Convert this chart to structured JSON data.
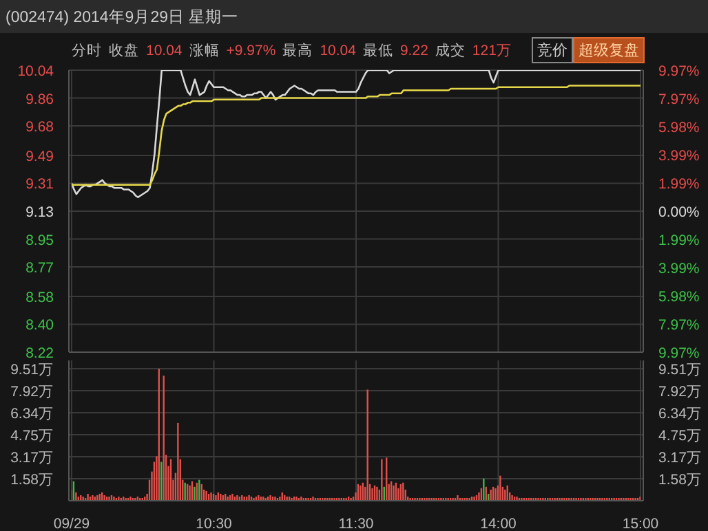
{
  "chart_data": [
    {
      "type": "line",
      "title": "(002474) 2014年9月29日 星期一",
      "subtitle": "分时 收盘 10.04 涨幅 +9.97% 最高 10.04 最低 9.22 成交 121万",
      "annotations": [
        "竞价",
        "超级复盘"
      ],
      "categories": [
        null,
        null,
        null,
        null,
        null,
        null,
        null,
        null,
        null,
        null,
        null,
        null,
        null,
        null,
        null,
        null,
        null,
        null,
        null,
        null,
        null,
        null,
        null,
        null,
        null,
        null,
        null,
        null,
        null,
        null,
        null,
        null,
        null,
        null,
        null,
        null,
        null,
        null,
        null,
        null,
        null,
        null,
        null,
        null,
        null,
        null,
        null,
        null,
        null,
        null,
        null,
        null,
        null,
        null,
        null,
        null,
        null,
        null,
        null,
        null,
        null,
        null,
        null,
        null,
        null,
        null,
        null,
        null,
        null,
        null,
        null,
        null,
        null,
        null,
        null,
        null,
        null,
        null,
        null,
        null,
        null,
        null,
        null,
        null,
        null,
        null,
        null,
        null,
        null,
        null,
        null,
        null,
        null,
        null,
        null,
        null,
        null,
        null,
        null,
        null,
        null,
        null,
        null,
        null,
        null,
        null,
        null,
        null,
        null,
        null,
        null,
        null,
        null,
        null,
        null,
        null,
        null,
        null,
        null,
        null,
        null,
        null,
        null,
        null,
        null,
        null,
        null,
        null,
        null,
        null,
        null,
        null,
        null,
        null,
        null,
        null,
        null,
        null,
        null,
        null,
        null,
        null,
        null,
        null,
        null,
        null,
        null,
        null,
        null,
        null,
        null,
        null,
        null,
        null,
        null,
        null,
        null,
        null,
        null,
        null,
        null,
        null,
        null,
        null,
        null,
        null,
        null,
        null,
        null,
        null,
        null,
        null,
        null,
        null,
        null,
        null,
        null,
        null,
        null,
        null,
        null,
        null,
        null,
        null,
        null,
        null,
        null,
        null,
        null,
        null,
        null,
        null,
        null,
        null,
        null,
        null,
        null,
        null,
        null,
        null,
        null,
        null,
        null,
        null,
        null,
        null,
        null,
        null,
        null,
        null,
        null,
        null,
        null,
        null,
        null,
        null,
        null,
        null,
        null,
        null,
        null,
        null,
        null,
        null,
        null,
        null,
        null,
        null,
        null,
        null,
        null,
        null,
        null,
        null,
        null,
        null,
        null,
        null,
        null,
        null,
        null
      ],
      "ylim": [
        8.22,
        10.04
      ],
      "yticks": [
        10.04,
        9.86,
        9.68,
        9.49,
        9.31,
        9.13,
        8.95,
        8.77,
        8.58,
        {
          "value": 8.4,
          "label": "8.40"
        },
        8.22
      ],
      "y2lim": [
        -9.97,
        9.97
      ],
      "y2ticks": [
        {
          "value": 9.97,
          "label": "9.97%"
        },
        {
          "value": 7.97,
          "label": "7.97%"
        },
        {
          "value": 5.98,
          "label": "5.98%"
        },
        {
          "value": 3.99,
          "label": "3.99%"
        },
        {
          "value": 1.99,
          "label": "1.99%"
        },
        {
          "value": 0,
          "label": "0.00%"
        },
        {
          "value": -1.99,
          "label": "1.99%"
        },
        {
          "value": -3.99,
          "label": "3.99%"
        },
        {
          "value": -5.98,
          "label": "5.98%"
        },
        {
          "value": -7.97,
          "label": "7.97%"
        },
        {
          "value": -9.97,
          "label": "9.97%"
        }
      ],
      "grid": true,
      "tick_labels": "y",
      "marker": "none",
      "line_style": "solid",
      "series": [
        {
          "color": "#d8d8d8",
          "values": [
            9.31,
            9.27,
            9.24,
            9.26,
            9.28,
            9.29,
            9.3,
            9.29,
            9.29,
            9.3,
            9.3,
            9.31,
            9.32,
            9.33,
            9.31,
            9.3,
            9.29,
            9.29,
            9.28,
            9.28,
            9.28,
            9.28,
            9.27,
            9.27,
            9.27,
            9.26,
            9.25,
            9.23,
            9.22,
            9.23,
            9.24,
            9.25,
            9.26,
            9.28,
            9.38,
            9.5,
            9.68,
            9.85,
            10.04,
            10.04,
            10.04,
            10.04,
            10.04,
            10.04,
            10.04,
            10.04,
            10.04,
            9.99,
            9.94,
            9.9,
            9.88,
            9.93,
            9.98,
            9.93,
            9.88,
            9.89,
            9.9,
            9.94,
            9.97,
            9.95,
            9.93,
            9.93,
            9.93,
            9.93,
            9.93,
            9.92,
            9.91,
            9.91,
            9.9,
            9.89,
            9.88,
            9.88,
            9.87,
            9.87,
            9.88,
            9.88,
            9.88,
            9.89,
            9.89,
            9.9,
            9.9,
            9.88,
            9.86,
            9.88,
            9.9,
            9.88,
            9.85,
            9.86,
            9.87,
            9.88,
            9.88,
            9.9,
            9.92,
            9.93,
            9.94,
            9.93,
            9.92,
            9.92,
            9.91,
            9.9,
            9.89,
            9.89,
            9.88,
            9.9,
            9.91,
            9.91,
            9.91,
            9.91,
            9.91,
            9.91,
            9.91,
            9.91,
            9.9,
            9.9,
            9.9,
            9.9,
            9.9,
            9.9,
            9.9,
            9.9,
            9.9,
            9.92,
            9.96,
            9.99,
            10.02,
            10.04,
            10.04,
            10.04,
            10.04,
            10.04,
            10.04,
            10.04,
            10.04,
            10.04,
            10.02,
            10.03,
            10.04,
            10.04,
            10.04,
            10.04,
            10.04,
            10.04,
            10.04,
            10.04,
            10.04,
            10.04,
            10.04,
            10.04,
            10.04,
            10.04,
            10.04,
            10.04,
            10.04,
            10.04,
            10.04,
            10.04,
            10.04,
            10.04,
            10.04,
            10.04,
            10.04,
            10.04,
            10.04,
            10.04,
            10.04,
            10.04,
            10.04,
            10.04,
            10.04,
            10.04,
            10.04,
            10.04,
            10.04,
            10.04,
            10.04,
            10.04,
            10.04,
            9.99,
            9.96,
            10.0,
            10.04,
            10.04,
            10.04,
            10.04,
            10.04,
            10.04,
            10.04,
            10.04,
            10.04,
            10.04,
            10.04,
            10.04,
            10.04,
            10.04,
            10.04,
            10.04,
            10.04,
            10.04,
            10.04,
            10.04,
            10.04,
            10.04,
            10.04,
            10.04,
            10.04,
            10.04,
            10.04,
            10.04,
            10.04,
            10.04,
            10.04,
            10.04,
            10.04,
            10.04,
            10.04,
            10.04,
            10.04,
            10.04,
            10.04,
            10.04,
            10.04,
            10.04,
            10.04,
            10.04,
            10.04,
            10.04,
            10.04,
            10.04,
            10.04,
            10.04,
            10.04,
            10.04,
            10.04,
            10.04,
            10.04,
            10.04,
            10.04,
            10.04,
            10.04,
            10.04,
            10.04
          ]
        },
        {
          "color": "#e6d84a",
          "values": [
            9.3,
            9.3,
            9.3,
            9.3,
            9.3,
            9.3,
            9.3,
            9.3,
            9.3,
            9.3,
            9.3,
            9.3,
            9.3,
            9.3,
            9.3,
            9.3,
            9.3,
            9.3,
            9.3,
            9.3,
            9.3,
            9.3,
            9.3,
            9.3,
            9.3,
            9.3,
            9.3,
            9.3,
            9.3,
            9.3,
            9.3,
            9.3,
            9.3,
            9.3,
            9.33,
            9.37,
            9.4,
            9.52,
            9.65,
            9.72,
            9.76,
            9.77,
            9.78,
            9.79,
            9.8,
            9.81,
            9.81,
            9.82,
            9.82,
            9.83,
            9.83,
            9.84,
            9.84,
            9.84,
            9.84,
            9.84,
            9.84,
            9.84,
            9.84,
            9.84,
            9.85,
            9.85,
            9.85,
            9.85,
            9.85,
            9.85,
            9.85,
            9.85,
            9.85,
            9.85,
            9.85,
            9.85,
            9.85,
            9.85,
            9.85,
            9.85,
            9.85,
            9.85,
            9.85,
            9.85,
            9.86,
            9.86,
            9.86,
            9.86,
            9.86,
            9.86,
            9.86,
            9.86,
            9.86,
            9.86,
            9.86,
            9.86,
            9.86,
            9.86,
            9.86,
            9.86,
            9.86,
            9.86,
            9.86,
            9.86,
            9.86,
            9.86,
            9.86,
            9.86,
            9.86,
            9.86,
            9.86,
            9.86,
            9.86,
            9.86,
            9.86,
            9.86,
            9.86,
            9.86,
            9.86,
            9.86,
            9.86,
            9.86,
            9.86,
            9.86,
            9.86,
            9.86,
            9.86,
            9.86,
            9.86,
            9.87,
            9.87,
            9.87,
            9.87,
            9.87,
            9.88,
            9.88,
            9.88,
            9.88,
            9.88,
            9.89,
            9.89,
            9.89,
            9.89,
            9.89,
            9.91,
            9.91,
            9.91,
            9.91,
            9.91,
            9.91,
            9.91,
            9.91,
            9.91,
            9.91,
            9.91,
            9.91,
            9.91,
            9.91,
            9.91,
            9.91,
            9.91,
            9.91,
            9.91,
            9.91,
            9.92,
            9.92,
            9.92,
            9.92,
            9.92,
            9.92,
            9.92,
            9.92,
            9.92,
            9.92,
            9.92,
            9.92,
            9.92,
            9.92,
            9.92,
            9.92,
            9.92,
            9.92,
            9.92,
            9.92,
            9.93,
            9.93,
            9.93,
            9.93,
            9.93,
            9.93,
            9.93,
            9.93,
            9.93,
            9.93,
            9.93,
            9.93,
            9.93,
            9.93,
            9.93,
            9.93,
            9.93,
            9.93,
            9.93,
            9.93,
            9.93,
            9.93,
            9.93,
            9.93,
            9.93,
            9.93,
            9.93,
            9.93,
            9.93,
            9.93,
            9.94,
            9.94,
            9.94,
            9.94,
            9.94,
            9.94,
            9.94,
            9.94,
            9.94,
            9.94,
            9.94,
            9.94,
            9.94,
            9.94,
            9.94,
            9.94,
            9.94,
            9.94,
            9.94,
            9.94,
            9.94,
            9.94,
            9.94,
            9.94,
            9.94,
            9.94,
            9.94,
            9.94,
            9.94,
            9.94,
            9.94
          ]
        }
      ]
    },
    {
      "type": "bar",
      "categories": [
        "09/29",
        null,
        null,
        null,
        null,
        null,
        null,
        null,
        null,
        null,
        null,
        null,
        null,
        null,
        null,
        null,
        null,
        null,
        null,
        null,
        null,
        null,
        null,
        null,
        null,
        null,
        null,
        null,
        null,
        null,
        null,
        null,
        null,
        null,
        null,
        null,
        null,
        null,
        null,
        null,
        null,
        null,
        null,
        null,
        null,
        null,
        null,
        null,
        null,
        null,
        null,
        null,
        null,
        null,
        null,
        null,
        null,
        null,
        null,
        null,
        "10:30",
        null,
        null,
        null,
        null,
        null,
        null,
        null,
        null,
        null,
        null,
        null,
        null,
        null,
        null,
        null,
        null,
        null,
        null,
        null,
        null,
        null,
        null,
        null,
        null,
        null,
        null,
        null,
        null,
        null,
        null,
        null,
        null,
        null,
        null,
        null,
        null,
        null,
        null,
        null,
        null,
        null,
        null,
        null,
        null,
        null,
        null,
        null,
        null,
        null,
        null,
        null,
        null,
        null,
        null,
        null,
        null,
        null,
        null,
        null,
        "11:30",
        null,
        null,
        null,
        null,
        null,
        null,
        null,
        null,
        null,
        null,
        null,
        null,
        null,
        null,
        null,
        null,
        null,
        null,
        null,
        null,
        null,
        null,
        null,
        null,
        null,
        null,
        null,
        null,
        null,
        null,
        null,
        null,
        null,
        null,
        null,
        null,
        null,
        null,
        null,
        null,
        null,
        null,
        null,
        null,
        null,
        null,
        null,
        null,
        null,
        null,
        null,
        null,
        null,
        null,
        null,
        null,
        null,
        null,
        null,
        "14:00",
        null,
        null,
        null,
        null,
        null,
        null,
        null,
        null,
        null,
        null,
        null,
        null,
        null,
        null,
        null,
        null,
        null,
        null,
        null,
        null,
        null,
        null,
        null,
        null,
        null,
        null,
        null,
        null,
        null,
        null,
        null,
        null,
        null,
        null,
        null,
        null,
        null,
        null,
        null,
        null,
        null,
        null,
        null,
        null,
        null,
        null,
        null,
        null,
        null,
        null,
        null,
        null,
        null,
        null,
        null,
        null,
        null,
        null,
        null,
        "15:00"
      ],
      "ylim": [
        0,
        10.1
      ],
      "yticks": [
        {
          "value": 1.58,
          "label": "1.58万"
        },
        {
          "value": 3.17,
          "label": "3.17万"
        },
        {
          "value": 4.75,
          "label": "4.75万"
        },
        {
          "value": 6.34,
          "label": "6.34万"
        },
        {
          "value": 7.92,
          "label": "7.92万"
        },
        {
          "value": 9.51,
          "label": "9.51万"
        }
      ],
      "y2lim": [
        0,
        10.1
      ],
      "y2ticks": [
        {
          "value": 1.58,
          "label": "1.58万"
        },
        {
          "value": 3.17,
          "label": "3.17万"
        },
        {
          "value": 4.75,
          "label": "4.75万"
        },
        {
          "value": 6.34,
          "label": "6.34万"
        },
        {
          "value": 7.92,
          "label": "7.92万"
        },
        {
          "value": 9.51,
          "label": "9.51万"
        }
      ],
      "grid": true,
      "values": [
        0.8,
        1.4,
        0.6,
        0.3,
        0.4,
        0.3,
        0.2,
        0.5,
        0.3,
        0.4,
        0.3,
        0.4,
        0.5,
        0.6,
        0.4,
        0.3,
        0.3,
        0.4,
        0.3,
        0.2,
        0.3,
        0.2,
        0.3,
        0.2,
        0.2,
        0.3,
        0.2,
        0.2,
        0.3,
        0.2,
        0.2,
        0.3,
        0.5,
        1.5,
        2.1,
        2.8,
        3.2,
        9.5,
        2.8,
        9.0,
        3.3,
        2.5,
        3.0,
        1.5,
        2.0,
        5.6,
        3.0,
        1.5,
        1.3,
        1.2,
        1.1,
        1.4,
        1.0,
        1.3,
        1.5,
        1.2,
        0.8,
        0.7,
        0.5,
        0.6,
        0.5,
        0.4,
        0.6,
        0.5,
        0.4,
        0.5,
        0.3,
        0.4,
        0.5,
        0.3,
        0.4,
        0.3,
        0.4,
        0.3,
        0.3,
        0.4,
        0.3,
        0.2,
        0.3,
        0.4,
        0.3,
        0.3,
        0.2,
        0.3,
        0.4,
        0.3,
        0.3,
        0.2,
        0.3,
        0.6,
        0.4,
        0.3,
        0.3,
        0.2,
        0.3,
        0.3,
        0.2,
        0.3,
        0.2,
        0.2,
        0.2,
        0.2,
        0.3,
        0.2,
        0.2,
        0.2,
        0.2,
        0.2,
        0.2,
        0.2,
        0.2,
        0.2,
        0.2,
        0.2,
        0.2,
        0.2,
        0.2,
        0.3,
        0.2,
        0.3,
        0.6,
        1.2,
        1.1,
        1.3,
        1.0,
        8.0,
        1.2,
        0.9,
        1.1,
        1.0,
        0.8,
        3.0,
        1.0,
        3.1,
        1.2,
        1.4,
        1.1,
        1.3,
        0.9,
        1.2,
        1.3,
        0.8,
        0.3,
        0.2,
        0.2,
        0.2,
        0.2,
        0.2,
        0.2,
        0.2,
        0.2,
        0.2,
        0.2,
        0.2,
        0.2,
        0.2,
        0.2,
        0.2,
        0.2,
        0.2,
        0.2,
        0.2,
        0.2,
        0.4,
        0.2,
        0.2,
        0.2,
        0.2,
        0.2,
        0.3,
        0.3,
        0.4,
        0.6,
        0.9,
        1.6,
        1.0,
        0.5,
        0.8,
        1.0,
        0.9,
        1.1,
        1.8,
        1.0,
        0.8,
        1.1,
        0.6,
        0.4,
        0.3,
        0.3,
        0.2,
        0.2,
        0.2,
        0.2,
        0.2,
        0.2,
        0.2,
        0.2,
        0.2,
        0.2,
        0.2,
        0.2,
        0.2,
        0.2,
        0.2,
        0.2,
        0.2,
        0.2,
        0.2,
        0.2,
        0.2,
        0.2,
        0.2,
        0.2,
        0.2,
        0.2,
        0.2,
        0.2,
        0.2,
        0.2,
        0.2,
        0.2,
        0.2,
        0.2,
        0.2,
        0.2,
        0.2,
        0.2,
        0.2,
        0.2,
        0.2,
        0.2,
        0.2,
        0.2,
        0.2,
        0.2,
        0.2,
        0.2,
        0.2,
        0.2,
        0.2,
        0.3
      ],
      "colors": [
        "#e0504a",
        "#3eb84a",
        "#e0504a",
        "#e0504a",
        "#e0504a",
        "#e0504a",
        "#e0504a",
        "#e0504a",
        "#e0504a",
        "#e0504a",
        "#e0504a",
        "#e0504a",
        "#e0504a",
        "#e0504a",
        "#e0504a",
        "#e0504a",
        "#e0504a",
        "#e0504a",
        "#e0504a",
        "#e0504a",
        "#e0504a",
        "#e0504a",
        "#e0504a",
        "#e0504a",
        "#e0504a",
        "#e0504a",
        "#e0504a",
        "#e0504a",
        "#e0504a",
        "#e0504a",
        "#e0504a",
        "#e0504a",
        "#e0504a",
        "#e0504a",
        "#e0504a",
        "#e0504a",
        "#e0504a",
        "#e0504a",
        "#3eb84a",
        "#e0504a",
        "#e0504a",
        "#e0504a",
        "#e0504a",
        "#e0504a",
        "#e0504a",
        "#e0504a",
        "#e0504a",
        "#e0504a",
        "#3eb84a",
        "#e0504a",
        "#e0504a",
        "#e0504a",
        "#3eb84a",
        "#e0504a",
        "#3eb84a",
        "#e0504a",
        "#e0504a",
        "#e0504a",
        "#e0504a",
        "#e0504a",
        "#e0504a",
        "#e0504a",
        "#e0504a",
        "#e0504a",
        "#e0504a",
        "#e0504a",
        "#e0504a",
        "#e0504a",
        "#e0504a",
        "#e0504a",
        "#e0504a",
        "#e0504a",
        "#e0504a",
        "#e0504a",
        "#e0504a",
        "#e0504a",
        "#e0504a",
        "#e0504a",
        "#e0504a",
        "#e0504a",
        "#e0504a",
        "#e0504a",
        "#e0504a",
        "#e0504a",
        "#e0504a",
        "#e0504a",
        "#e0504a",
        "#e0504a",
        "#e0504a",
        "#e0504a",
        "#e0504a",
        "#e0504a",
        "#e0504a",
        "#e0504a",
        "#e0504a",
        "#e0504a",
        "#e0504a",
        "#e0504a",
        "#e0504a",
        "#e0504a",
        "#e0504a",
        "#e0504a",
        "#e0504a",
        "#e0504a",
        "#e0504a",
        "#e0504a",
        "#e0504a",
        "#e0504a",
        "#e0504a",
        "#e0504a",
        "#e0504a",
        "#e0504a",
        "#e0504a",
        "#e0504a",
        "#e0504a",
        "#e0504a",
        "#e0504a",
        "#e0504a",
        "#e0504a",
        "#e0504a",
        "#e0504a",
        "#e0504a",
        "#e0504a",
        "#e0504a",
        "#e0504a",
        "#e0504a",
        "#e0504a",
        "#e0504a",
        "#e0504a",
        "#e0504a",
        "#e0504a",
        "#e0504a",
        "#3eb84a",
        "#e0504a",
        "#e0504a",
        "#e0504a",
        "#e0504a",
        "#e0504a",
        "#e0504a",
        "#e0504a",
        "#e0504a",
        "#e0504a",
        "#e0504a",
        "#e0504a",
        "#e0504a",
        "#e0504a",
        "#e0504a",
        "#e0504a",
        "#e0504a",
        "#e0504a",
        "#e0504a",
        "#e0504a",
        "#e0504a",
        "#e0504a",
        "#e0504a",
        "#e0504a",
        "#e0504a",
        "#e0504a",
        "#e0504a",
        "#e0504a",
        "#e0504a",
        "#e0504a",
        "#e0504a",
        "#e0504a",
        "#e0504a",
        "#e0504a",
        "#e0504a",
        "#e0504a",
        "#e0504a",
        "#e0504a",
        "#e0504a",
        "#e0504a",
        "#e0504a",
        "#e0504a",
        "#3eb84a",
        "#e0504a",
        "#3eb84a",
        "#e0504a",
        "#e0504a",
        "#e0504a",
        "#e0504a",
        "#e0504a",
        "#e0504a",
        "#e0504a",
        "#e0504a",
        "#e0504a",
        "#e0504a",
        "#e0504a",
        "#e0504a",
        "#e0504a",
        "#e0504a",
        "#e0504a",
        "#e0504a",
        "#e0504a",
        "#e0504a",
        "#e0504a",
        "#e0504a",
        "#e0504a",
        "#e0504a",
        "#e0504a",
        "#e0504a",
        "#e0504a",
        "#e0504a",
        "#e0504a",
        "#e0504a",
        "#e0504a",
        "#e0504a",
        "#e0504a",
        "#e0504a",
        "#e0504a",
        "#e0504a",
        "#e0504a",
        "#e0504a",
        "#e0504a",
        "#e0504a",
        "#e0504a",
        "#e0504a",
        "#e0504a",
        "#e0504a",
        "#e0504a",
        "#e0504a",
        "#e0504a",
        "#e0504a",
        "#e0504a",
        "#e0504a",
        "#e0504a",
        "#e0504a",
        "#e0504a",
        "#e0504a",
        "#e0504a",
        "#e0504a",
        "#e0504a",
        "#e0504a",
        "#e0504a",
        "#e0504a",
        "#e0504a",
        "#e0504a",
        "#e0504a",
        "#e0504a",
        "#e0504a",
        "#e0504a"
      ]
    }
  ]
}
